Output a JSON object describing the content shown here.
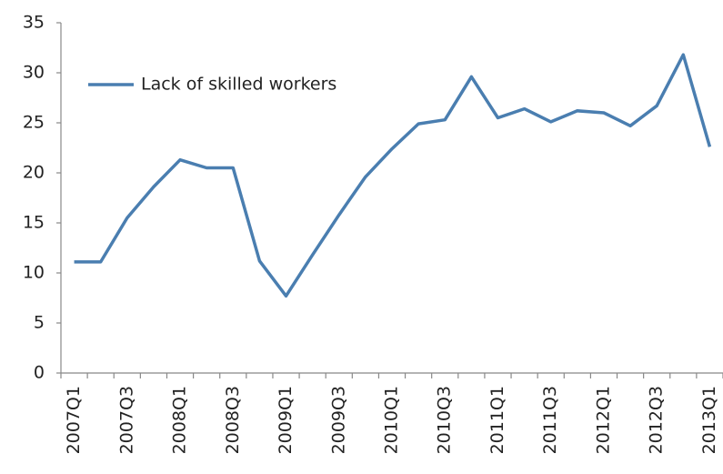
{
  "chart_data": {
    "type": "line",
    "categories": [
      "2007Q1",
      null,
      "2007Q3",
      null,
      "2008Q1",
      null,
      "2008Q3",
      null,
      "2009Q1",
      null,
      "2009Q3",
      null,
      "2010Q1",
      null,
      "2010Q3",
      null,
      "2011Q1",
      null,
      "2011Q3",
      null,
      "2012Q1",
      null,
      "2012Q3",
      null,
      "2013Q1"
    ],
    "series": [
      {
        "name": "Lack of skilled workers",
        "color": "#4a7eb0",
        "values": [
          11.1,
          11.1,
          15.5,
          18.6,
          21.3,
          20.5,
          20.5,
          11.2,
          7.7,
          11.8,
          15.8,
          19.6,
          22.4,
          24.9,
          25.3,
          29.6,
          25.5,
          26.4,
          25.1,
          26.2,
          26.0,
          24.7,
          26.7,
          31.8,
          22.6
        ]
      }
    ],
    "ylim": [
      0,
      35
    ],
    "yticks": [
      0,
      5,
      10,
      15,
      20,
      25,
      30,
      35
    ],
    "grid": false,
    "legend": "upper left"
  }
}
